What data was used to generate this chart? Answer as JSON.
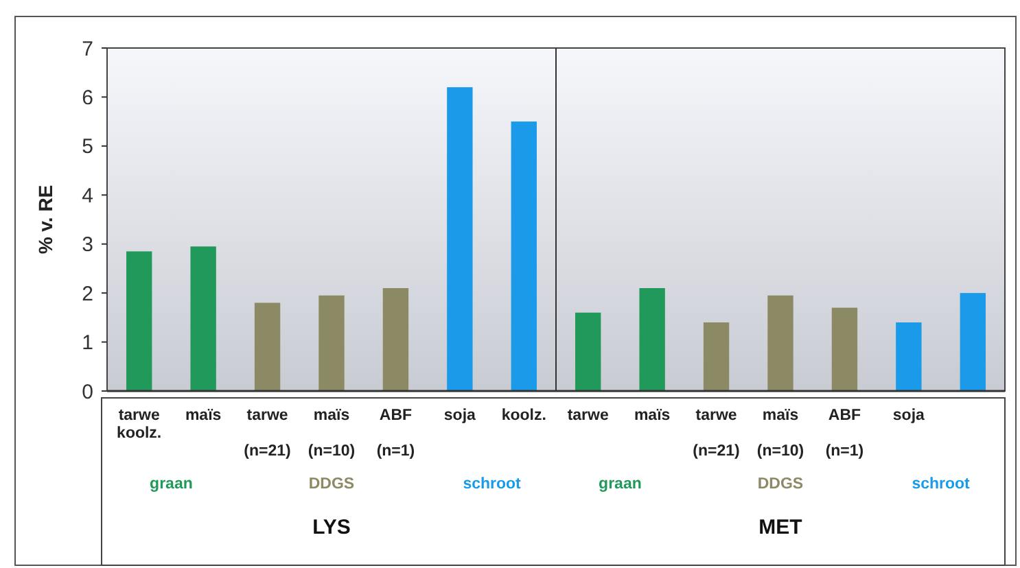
{
  "chart_data": {
    "type": "bar",
    "ylabel": "% v. RE",
    "categories": [
      "tarwe\nkoolz.",
      "maïs",
      "tarwe\n\n(n=21)",
      "maïs\n\n(n=10)",
      "ABF\n\n(n=1)",
      "soja",
      "koolz.",
      "tarwe",
      "maïs",
      "tarwe\n\n(n=21)",
      "maïs\n\n(n=10)",
      "ABF\n\n(n=1)",
      "soja",
      null
    ],
    "values": [
      2.85,
      2.95,
      1.8,
      1.95,
      2.1,
      6.2,
      5.5,
      1.6,
      2.1,
      1.4,
      1.95,
      1.7,
      1.4,
      2.0
    ],
    "colors": [
      "#21995a",
      "#21995a",
      "#8c8a65",
      "#8c8a65",
      "#8c8a65",
      "#1a9ae8",
      "#1a9ae8",
      "#21995a",
      "#21995a",
      "#8c8a65",
      "#8c8a65",
      "#8c8a65",
      "#1a9ae8",
      "#1a9ae8"
    ],
    "ylim": [
      0,
      7
    ],
    "yticks": [
      0,
      1,
      2,
      3,
      4,
      5,
      6,
      7
    ],
    "grid": false,
    "annotations": [
      "graan",
      "DDGS",
      "schroot",
      "graan",
      "DDGS",
      "schroot",
      "LYS",
      "MET"
    ]
  }
}
